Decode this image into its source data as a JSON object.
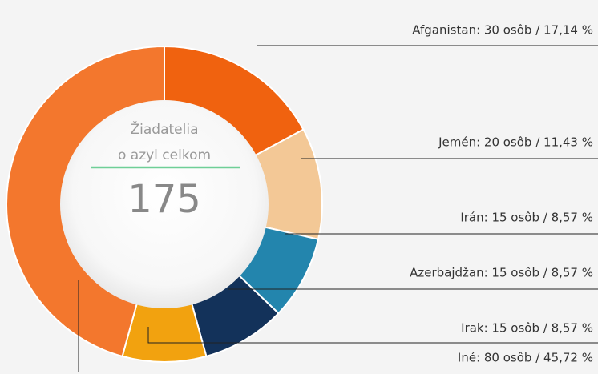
{
  "chart_data": {
    "type": "donut",
    "center_label": [
      "Žiadatelia",
      "o azyl celkom"
    ],
    "total": 175,
    "values": [
      30,
      20,
      15,
      15,
      15,
      80
    ],
    "value_labels": [
      "Afganistan: 30 osôb / 17,14 %",
      "Jemén: 20 osôb / 11,43 %",
      "Irán: 15 osôb / 8,57 %",
      "Azerbajdžan: 15 osôb / 8,57 %",
      "Irak: 15 osôb / 8,57 %",
      "Iné: 80 osôb / 45,72 %"
    ],
    "colors": [
      "#f0620f",
      "#f3c896",
      "#2385ad",
      "#13325a",
      "#f2a20f",
      "#f3772d"
    ]
  }
}
